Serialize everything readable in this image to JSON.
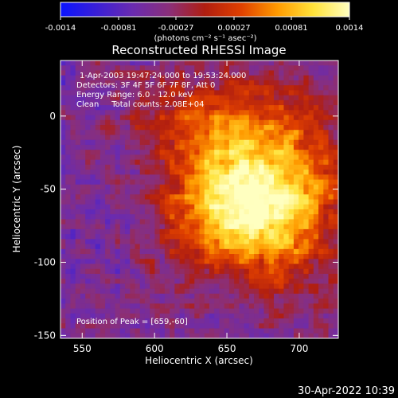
{
  "colorbar": {
    "ticks": [
      "-0.0014",
      "-0.00081",
      "-0.00027",
      "0.00027",
      "0.00081",
      "0.0014"
    ],
    "unit_label": "(photons cm⁻² s⁻¹ asec⁻²)",
    "colors": [
      "#0a14ff",
      "#3a1fd6",
      "#6a2bb0",
      "#8a2f7a",
      "#b01e10",
      "#e04000",
      "#ff9a00",
      "#ffe23a",
      "#ffffc0"
    ]
  },
  "chart_data": {
    "type": "heatmap",
    "title": "Reconstructed RHESSI Image",
    "xlabel": "Heliocentric X (arcsec)",
    "ylabel": "Heliocentric Y (arcsec)",
    "xlim": [
      535,
      727
    ],
    "ylim": [
      -152,
      38
    ],
    "x_ticks": [
      550,
      600,
      650,
      700
    ],
    "y_ticks": [
      0,
      -50,
      -100,
      -150
    ],
    "annotations": [
      "1-Apr-2003 19:47:24.000 to 19:53:24.000",
      "Detectors: 3F 4F 5F 6F 7F 8F, Att 0",
      "Energy Range: 6.0 - 12.0 keV",
      "Clean     Total counts: 2.08E+04"
    ],
    "peak_text": "Position of Peak = [659,-60]",
    "peak": [
      659,
      -60
    ],
    "value_range": [
      -0.0014,
      0.0014
    ]
  },
  "footer": {
    "date": "30-Apr-2022 10:39"
  }
}
